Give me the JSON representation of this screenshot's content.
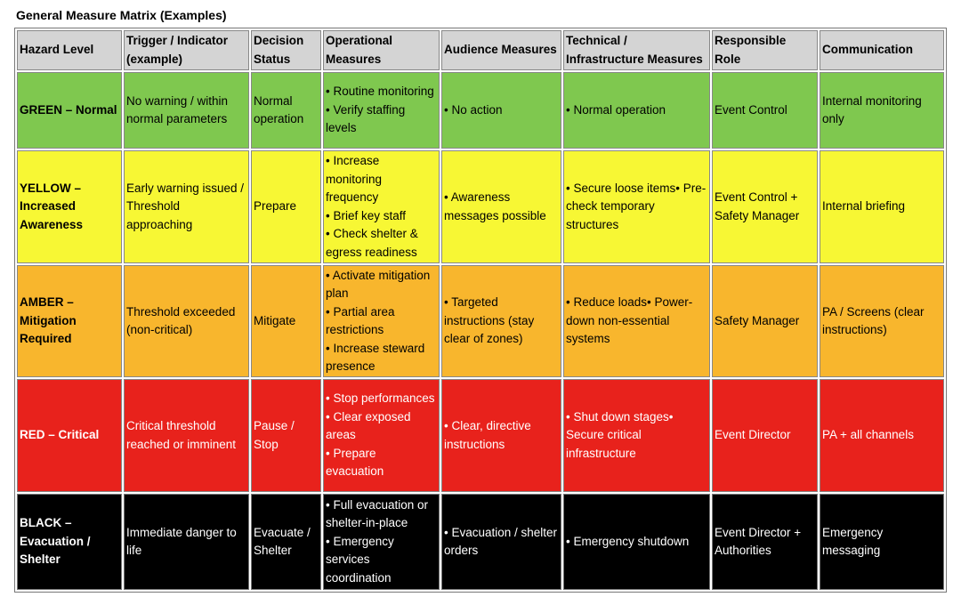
{
  "title": "General Measure Matrix (Examples)",
  "colors": {
    "header": "#d4d4d4",
    "green": "#7fc84f",
    "yellow": "#f7f734",
    "amber": "#f8b62d",
    "red": "#e8221c",
    "black": "#000000"
  },
  "headers": [
    "Hazard Level",
    "Trigger / Indicator (example)",
    "Decision Status",
    "Operational Measures",
    "Audience Measures",
    "Technical / Infrastructure Measures",
    "Responsible Role",
    "Communication"
  ],
  "rows": [
    {
      "level": "GREEN – Normal",
      "trigger": "No warning / within normal parameters",
      "status": "Normal operation",
      "operational": "• Routine monitoring\n• Verify staffing levels",
      "audience": "• No action",
      "technical": "• Normal operation",
      "role": "Event Control",
      "communication": "Internal monitoring only"
    },
    {
      "level": "YELLOW – Increased Awareness",
      "trigger": "Early warning issued / Threshold approaching",
      "status": "Prepare",
      "operational": "• Increase monitoring frequency\n• Brief key staff\n• Check shelter & egress readiness",
      "audience": "• Awareness messages possible",
      "technical": "• Secure loose items• Pre-check temporary structures",
      "role": "Event Control + Safety Manager",
      "communication": "Internal briefing"
    },
    {
      "level": "AMBER – Mitigation Required",
      "trigger": "Threshold exceeded (non-critical)",
      "status": "Mitigate",
      "operational": "• Activate mitigation plan\n• Partial area restrictions\n• Increase steward presence",
      "audience": "• Targeted instructions (stay clear of zones)",
      "technical": "• Reduce loads• Power-down non-essential systems",
      "role": "Safety Manager",
      "communication": "PA / Screens (clear instructions)"
    },
    {
      "level": "RED – Critical",
      "trigger": "Critical threshold reached or imminent",
      "status": "Pause / Stop",
      "operational": "• Stop performances\n• Clear exposed areas\n• Prepare evacuation",
      "audience": "• Clear, directive instructions",
      "technical": "• Shut down stages• Secure critical infrastructure",
      "role": "Event Director",
      "communication": "PA + all channels"
    },
    {
      "level": "BLACK – Evacuation / Shelter",
      "trigger": "Immediate danger to life",
      "status": "Evacuate / Shelter",
      "operational": "• Full evacuation or shelter-in-place\n• Emergency services coordination",
      "audience": "• Evacuation / shelter orders",
      "technical": "• Emergency shutdown",
      "role": "Event Director + Authorities",
      "communication": "Emergency messaging"
    }
  ]
}
